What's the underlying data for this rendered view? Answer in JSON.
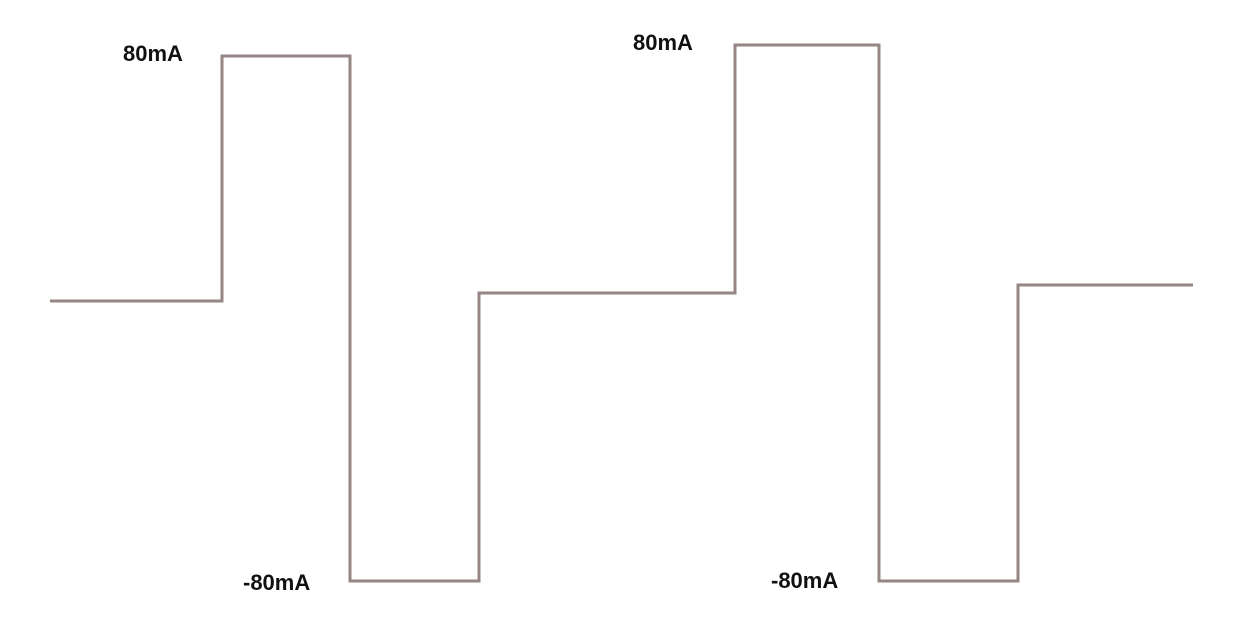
{
  "waveform": {
    "stroke_color": "#968684",
    "labels": {
      "positive_peak_1": "80mA",
      "positive_peak_2": "80mA",
      "negative_peak_1": "-80mA",
      "negative_peak_2": "-80mA"
    }
  }
}
